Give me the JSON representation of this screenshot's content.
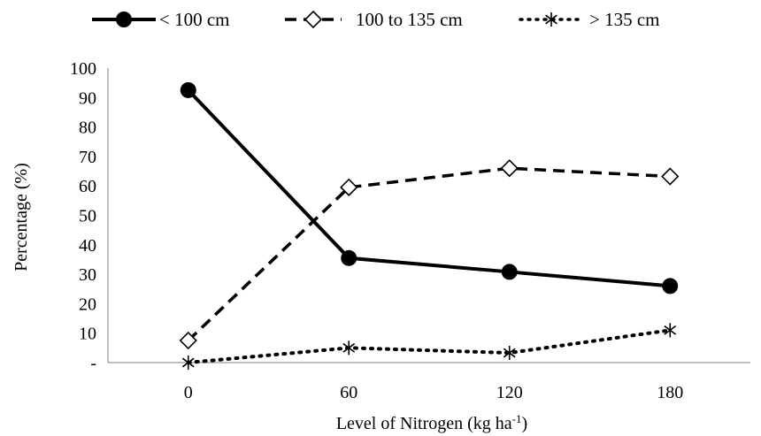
{
  "chart_data": {
    "type": "line",
    "title": "",
    "xlabel": "Level of Nitrogen (kg ha",
    "xlabel_sup": "-1",
    "xlabel_end": ")",
    "ylabel": "Percentage (%)",
    "x": [
      0,
      60,
      120,
      180
    ],
    "x_tick_labels": [
      "0",
      "60",
      "120",
      "180"
    ],
    "y_ticks": [
      0,
      10,
      20,
      30,
      40,
      50,
      60,
      70,
      80,
      90,
      100
    ],
    "y_tick_labels": [
      "-",
      "10",
      "20",
      "30",
      "40",
      "50",
      "60",
      "70",
      "80",
      "90",
      "100"
    ],
    "ylim": [
      0,
      100
    ],
    "grid": false,
    "legend_position": "top",
    "series": [
      {
        "name": "< 100 cm",
        "marker": "filled-circle",
        "line_style": "solid",
        "color": "#000000",
        "values": [
          92.5,
          35.5,
          30.8,
          26.0
        ]
      },
      {
        "name": "100 to 135 cm",
        "marker": "open-diamond",
        "line_style": "dashed",
        "color": "#000000",
        "values": [
          7.5,
          59.5,
          66.0,
          63.2
        ]
      },
      {
        "name": "> 135 cm",
        "marker": "asterisk",
        "line_style": "dotted",
        "color": "#000000",
        "values": [
          0.0,
          5.0,
          3.3,
          11.0
        ]
      }
    ]
  }
}
